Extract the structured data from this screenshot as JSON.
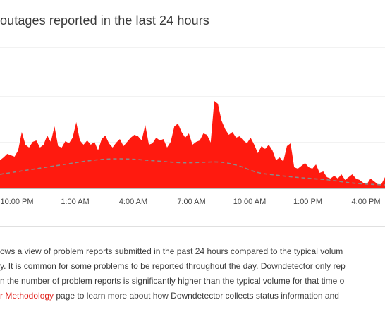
{
  "chart": {
    "title": "outages reported in the last 24 hours"
  },
  "chart_data": {
    "type": "area",
    "title": "outages reported in the last 24 hours",
    "xlabel": "",
    "ylabel": "",
    "x_tick_labels": [
      "10:00 PM",
      "1:00 AM",
      "4:00 AM",
      "7:00 AM",
      "10:00 AM",
      "1:00 PM",
      "4:00 PM"
    ],
    "grid": true,
    "series": [
      {
        "role": "reports",
        "color": "#ff1a0f",
        "values": [
          40,
          44,
          49,
          47,
          45,
          54,
          80,
          62,
          58,
          66,
          68,
          58,
          62,
          75,
          66,
          88,
          60,
          58,
          67,
          64,
          72,
          94,
          68,
          62,
          68,
          62,
          66,
          54,
          70,
          75,
          64,
          58,
          65,
          70,
          60,
          66,
          72,
          76,
          74,
          68,
          90,
          62,
          64,
          72,
          68,
          70,
          58,
          66,
          88,
          92,
          80,
          72,
          78,
          62,
          66,
          68,
          78,
          76,
          65,
          124,
          120,
          96,
          84,
          76,
          80,
          72,
          74,
          68,
          64,
          72,
          62,
          50,
          60,
          56,
          62,
          54,
          40,
          44,
          38,
          60,
          64,
          30,
          28,
          32,
          36,
          30,
          28,
          34,
          22,
          24,
          16,
          14,
          18,
          14,
          20,
          12,
          16,
          20,
          14,
          12,
          8,
          6,
          14,
          10,
          6,
          6,
          16
        ]
      },
      {
        "role": "typical",
        "color": "#8a8a8a",
        "values": [
          20,
          24,
          28,
          32,
          36,
          40,
          42,
          42,
          40,
          38,
          36,
          37,
          38,
          33,
          22,
          19,
          16,
          14,
          12,
          8,
          6,
          5
        ]
      }
    ]
  },
  "description": {
    "line1": "ows a view of problem reports submitted in the past 24 hours compared to the typical volum",
    "line2": "y. It is common for some problems to be reported throughout the day. Downdetector only rep",
    "line3": "n the number of problem reports is significantly higher than the typical volume for that time o",
    "link": "r Methodology",
    "line4_rest": " page to learn more about how Downdetector collects status information and"
  }
}
